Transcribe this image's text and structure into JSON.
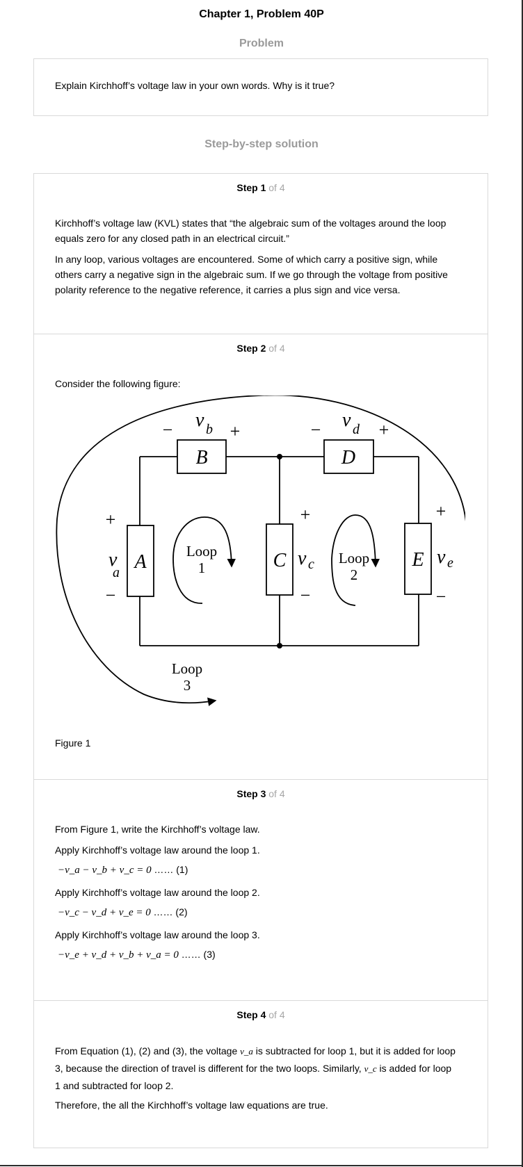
{
  "title": "Chapter 1, Problem 40P",
  "problem": {
    "heading": "Problem",
    "text": "Explain Kirchhoff’s voltage law in your own words. Why is it true?"
  },
  "solution_heading": "Step-by-step solution",
  "steps": [
    {
      "label": "Step 1",
      "of": "of 4",
      "p1": "Kirchhoff’s voltage law (KVL) states that “the algebraic sum of the voltages around the loop equals zero for any closed path in an electrical circuit.”",
      "p2": "In any loop, various voltages are encountered. Some of which carry a positive sign, while others carry a negative sign in the algebraic sum. If we go through the voltage from positive polarity reference to the negative reference, it carries a plus sign and vice versa."
    },
    {
      "label": "Step 2",
      "of": "of 4",
      "p1": "Consider the following figure:",
      "figure_caption": "Figure 1",
      "figure": {
        "elements": [
          "A",
          "B",
          "C",
          "D",
          "E"
        ],
        "voltages": [
          "v",
          "a",
          "b",
          "c",
          "d",
          "e"
        ],
        "plus": "+",
        "minus": "−",
        "loop_word": "Loop",
        "loop_nums": [
          "1",
          "2",
          "3"
        ]
      }
    },
    {
      "label": "Step 3",
      "of": "of 4",
      "p1": "From Figure 1, write the Kirchhoff’s voltage law.",
      "p2": "Apply Kirchhoff’s voltage law around the loop 1.",
      "eq1": "−v_a − v_b + v_c = 0",
      "eq1_tag": "…… (1)",
      "p3": "Apply Kirchhoff’s voltage law around the loop 2.",
      "eq2": "−v_c − v_d + v_e = 0",
      "eq2_tag": "…… (2)",
      "p4": "Apply Kirchhoff’s voltage law around the loop 3.",
      "eq3": "−v_e + v_d + v_b + v_a = 0",
      "eq3_tag": "…… (3)"
    },
    {
      "label": "Step 4",
      "of": "of 4",
      "p1_a": "From Equation (1), (2) and (3), the voltage",
      "p1_va": "v_a",
      "p1_b": "is subtracted for loop 1, but it is added for loop 3, because the direction of travel is different for the two loops. Similarly,",
      "p1_vc": "v_c",
      "p1_c": "is added for loop 1 and subtracted for loop 2.",
      "p2": "Therefore, the all the Kirchhoff’s voltage law equations are true."
    }
  ]
}
